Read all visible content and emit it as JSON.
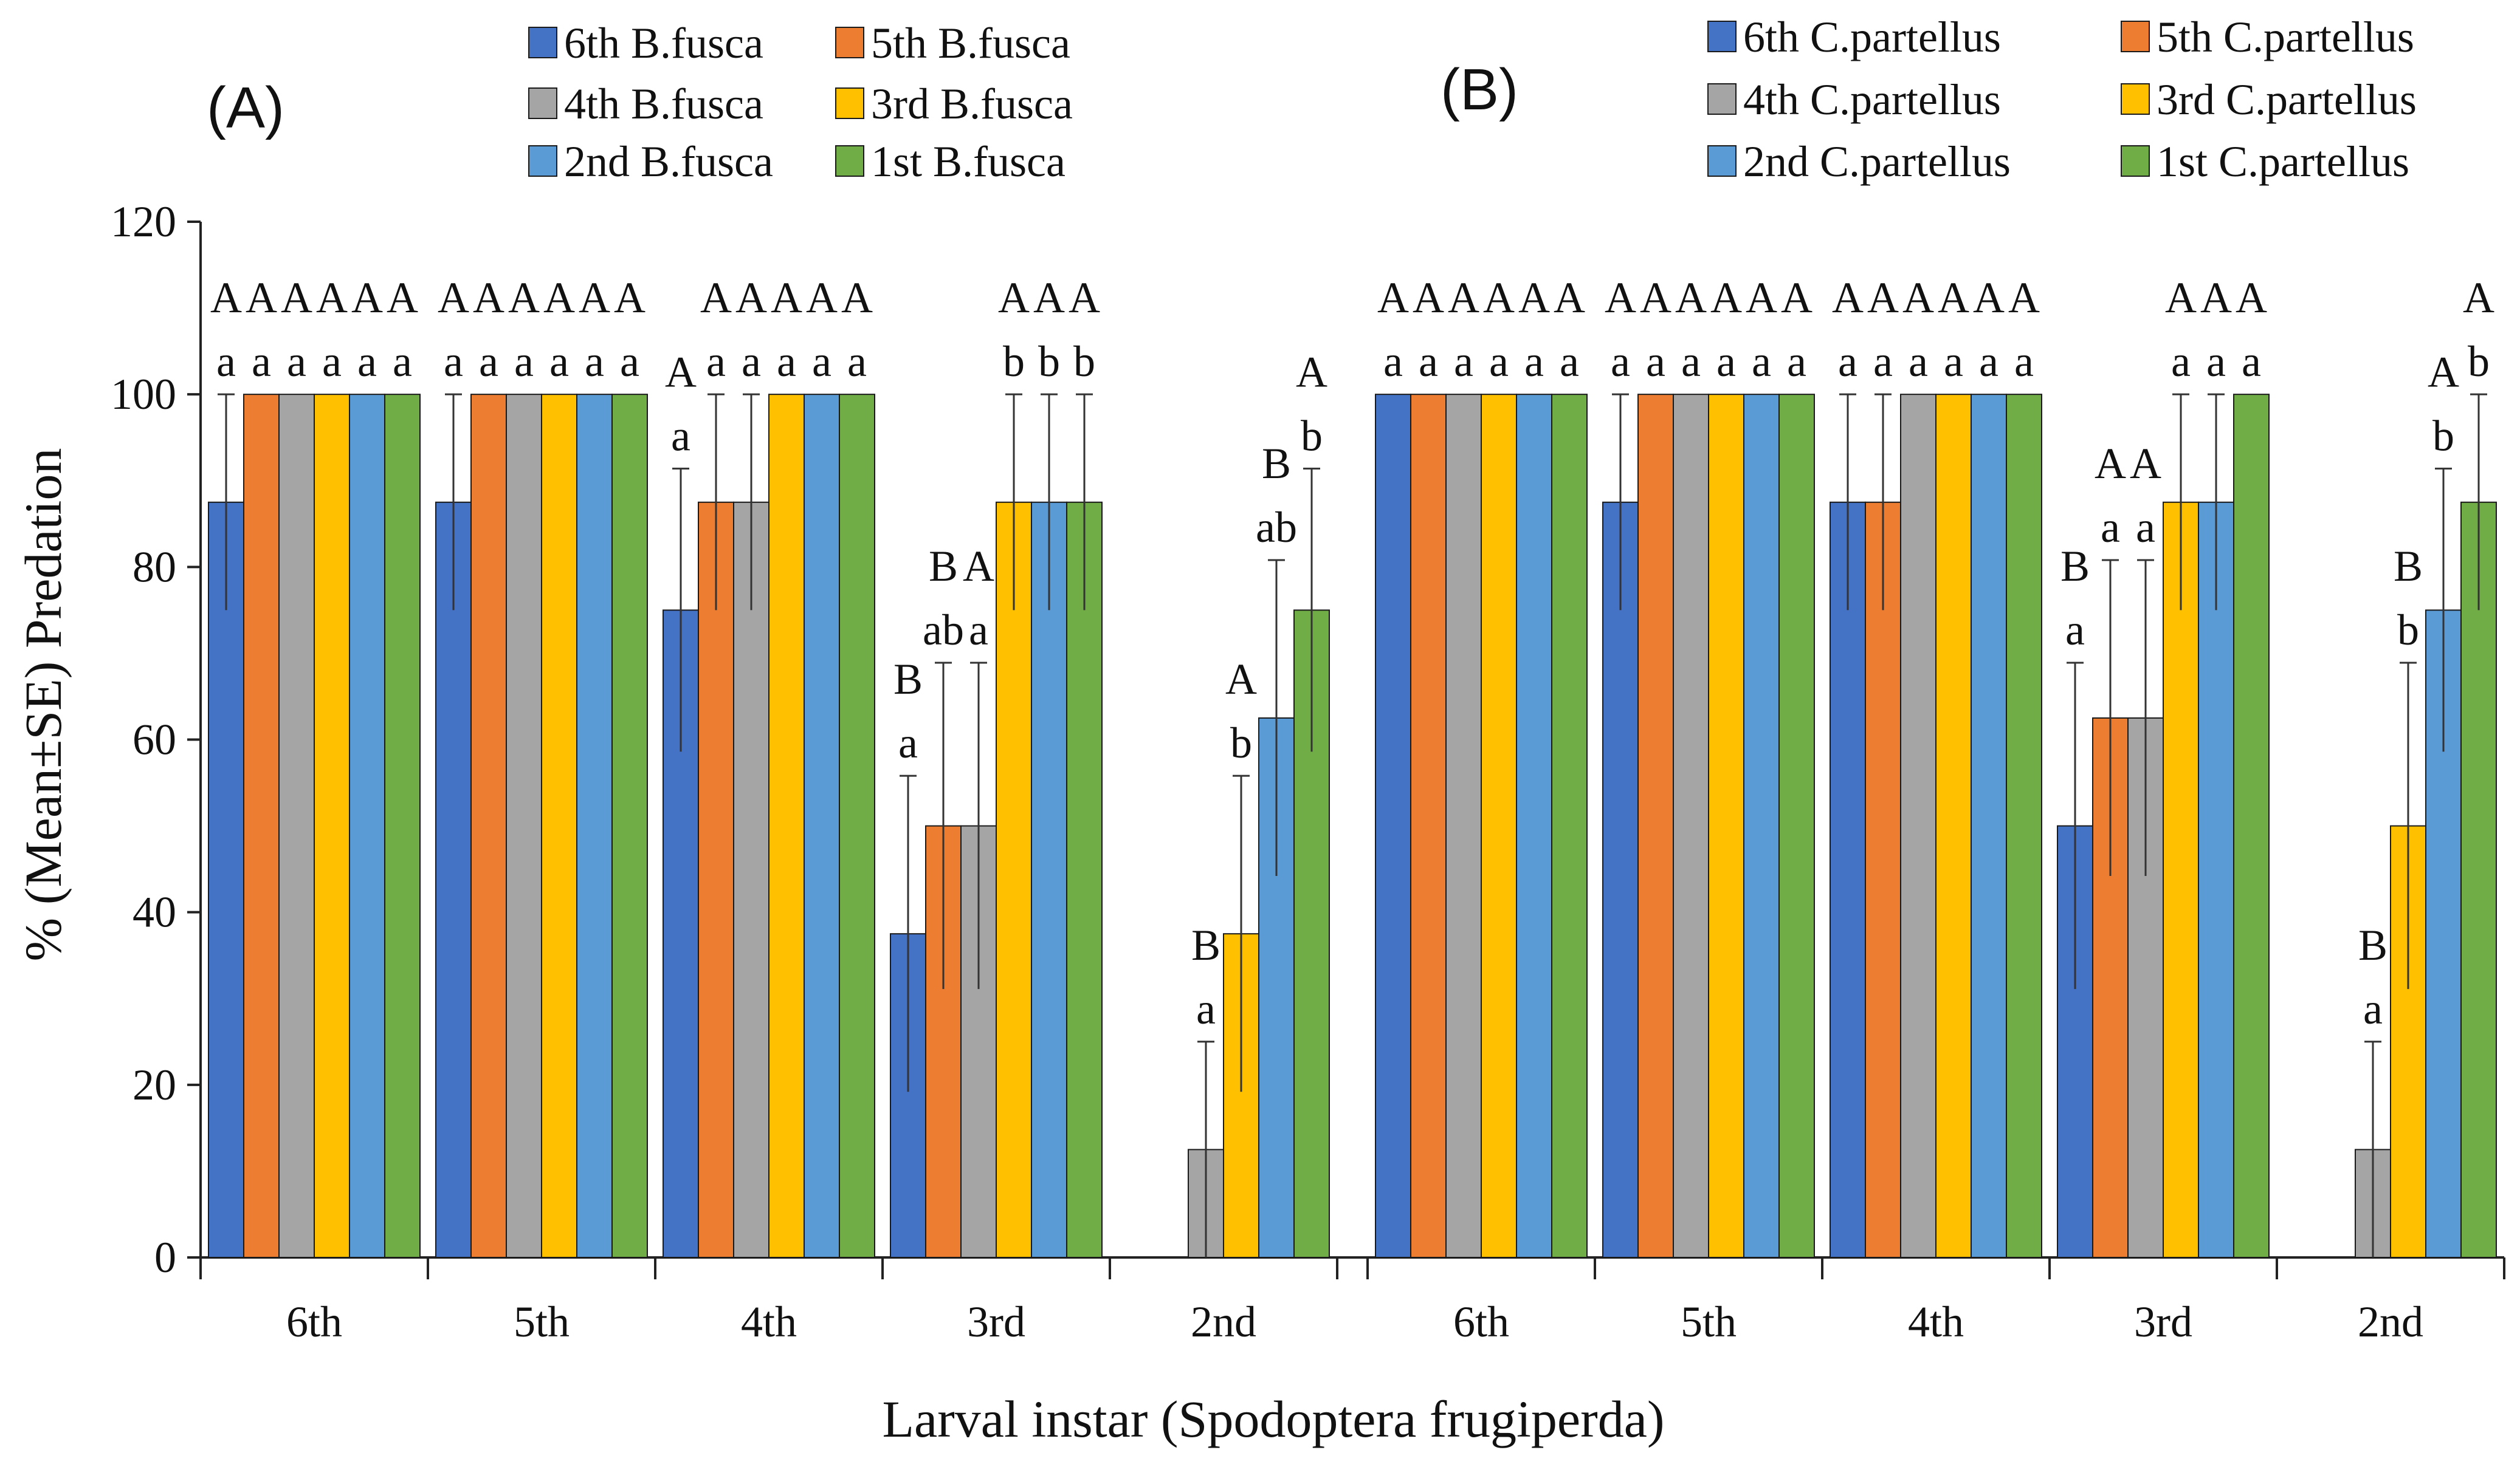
{
  "chart_data": [
    {
      "type": "bar",
      "panel_label": "(A)",
      "ylabel": "% (Mean±SE)  Predation",
      "xlabel": "Larval instar (Spodoptera frugiperda)",
      "ylim": [
        0,
        120
      ],
      "yticks": [
        "0",
        "20",
        "40",
        "60",
        "80",
        "100",
        "120"
      ],
      "categories": [
        "6th",
        "5th",
        "4th",
        "3rd",
        "2nd"
      ],
      "legend_position": "top",
      "series": [
        {
          "name": "6th B.fusca",
          "color": "#4472C4",
          "values": [
            87.5,
            87.5,
            75,
            37.5,
            0
          ],
          "se": [
            12.5,
            12.5,
            16.4,
            18.3,
            0
          ]
        },
        {
          "name": "5th B.fusca",
          "color": "#ED7D31",
          "values": [
            100,
            100,
            87.5,
            50,
            0
          ],
          "se": [
            0,
            0,
            12.5,
            18.9,
            0
          ]
        },
        {
          "name": "4th B.fusca",
          "color": "#A5A5A5",
          "values": [
            100,
            100,
            87.5,
            50,
            12.5
          ],
          "se": [
            0,
            0,
            12.5,
            18.9,
            12.5
          ]
        },
        {
          "name": "3rd B.fusca",
          "color": "#FFC000",
          "values": [
            100,
            100,
            100,
            87.5,
            37.5
          ],
          "se": [
            0,
            0,
            0,
            12.5,
            18.3
          ]
        },
        {
          "name": "2nd B.fusca",
          "color": "#5B9BD5",
          "values": [
            100,
            100,
            100,
            87.5,
            62.5
          ],
          "se": [
            0,
            0,
            0,
            12.5,
            18.3
          ]
        },
        {
          "name": "1st B.fusca",
          "color": "#70AD47",
          "values": [
            100,
            100,
            100,
            87.5,
            75
          ],
          "se": [
            0,
            0,
            0,
            12.5,
            16.4
          ]
        }
      ],
      "annotations": [
        {
          "group": 0,
          "upper": [
            "A",
            "A",
            "A",
            "A",
            "A",
            "A"
          ],
          "lower": [
            "a",
            "a",
            "a",
            "a",
            "a",
            "a"
          ]
        },
        {
          "group": 1,
          "upper": [
            "A",
            "A",
            "A",
            "A",
            "A",
            "A"
          ],
          "lower": [
            "a",
            "a",
            "a",
            "a",
            "a",
            "a"
          ]
        },
        {
          "group": 2,
          "upper": [
            "A",
            "A",
            "A",
            "A",
            "A",
            "A"
          ],
          "lower": [
            "a",
            "a",
            "a",
            "a",
            "a",
            "a"
          ]
        },
        {
          "group": 3,
          "upper": [
            "B",
            "B",
            "A",
            "A",
            "A",
            "A"
          ],
          "lower": [
            "a",
            "ab",
            "a",
            "b",
            "b",
            "b"
          ]
        },
        {
          "group": 4,
          "upper": [
            "",
            "",
            "B",
            "A",
            "B",
            "A"
          ],
          "lower": [
            "",
            "",
            "a",
            "b",
            "ab",
            "b"
          ]
        }
      ]
    },
    {
      "type": "bar",
      "panel_label": "(B)",
      "ylabel": "",
      "xlabel": "Larval instar (Spodoptera frugiperda)",
      "ylim": [
        0,
        120
      ],
      "yticks": [],
      "categories": [
        "6th",
        "5th",
        "4th",
        "3rd",
        "2nd"
      ],
      "legend_position": "top",
      "series": [
        {
          "name": "6th C.partellus",
          "color": "#4472C4",
          "values": [
            100,
            87.5,
            87.5,
            50,
            0
          ],
          "se": [
            0,
            12.5,
            12.5,
            18.9,
            0
          ]
        },
        {
          "name": "5th C.partellus",
          "color": "#ED7D31",
          "values": [
            100,
            100,
            87.5,
            62.5,
            0
          ],
          "se": [
            0,
            0,
            12.5,
            18.3,
            0
          ]
        },
        {
          "name": "4th C.partellus",
          "color": "#A5A5A5",
          "values": [
            100,
            100,
            100,
            62.5,
            12.5
          ],
          "se": [
            0,
            0,
            0,
            18.3,
            12.5
          ]
        },
        {
          "name": "3rd C.partellus",
          "color": "#FFC000",
          "values": [
            100,
            100,
            100,
            87.5,
            50
          ],
          "se": [
            0,
            0,
            0,
            12.5,
            18.9
          ]
        },
        {
          "name": "2nd C.partellus",
          "color": "#5B9BD5",
          "values": [
            100,
            100,
            100,
            87.5,
            75
          ],
          "se": [
            0,
            0,
            0,
            12.5,
            16.4
          ]
        },
        {
          "name": "1st C.partellus",
          "color": "#70AD47",
          "values": [
            100,
            100,
            100,
            100,
            87.5
          ],
          "se": [
            0,
            0,
            0,
            0,
            12.5
          ]
        }
      ],
      "annotations": [
        {
          "group": 0,
          "upper": [
            "A",
            "A",
            "A",
            "A",
            "A",
            "A"
          ],
          "lower": [
            "a",
            "a",
            "a",
            "a",
            "a",
            "a"
          ]
        },
        {
          "group": 1,
          "upper": [
            "A",
            "A",
            "A",
            "A",
            "A",
            "A"
          ],
          "lower": [
            "a",
            "a",
            "a",
            "a",
            "a",
            "a"
          ]
        },
        {
          "group": 2,
          "upper": [
            "A",
            "A",
            "A",
            "A",
            "A",
            "A"
          ],
          "lower": [
            "a",
            "a",
            "a",
            "a",
            "a",
            "a"
          ]
        },
        {
          "group": 3,
          "upper": [
            "B",
            "A",
            "A",
            "A",
            "A",
            "A"
          ],
          "lower": [
            "a",
            "a",
            "a",
            "a",
            "a",
            "a"
          ]
        },
        {
          "group": 4,
          "upper": [
            "",
            "",
            "B",
            "B",
            "A",
            "A"
          ],
          "lower": [
            "",
            "",
            "a",
            "b",
            "b",
            "b"
          ]
        }
      ]
    }
  ]
}
